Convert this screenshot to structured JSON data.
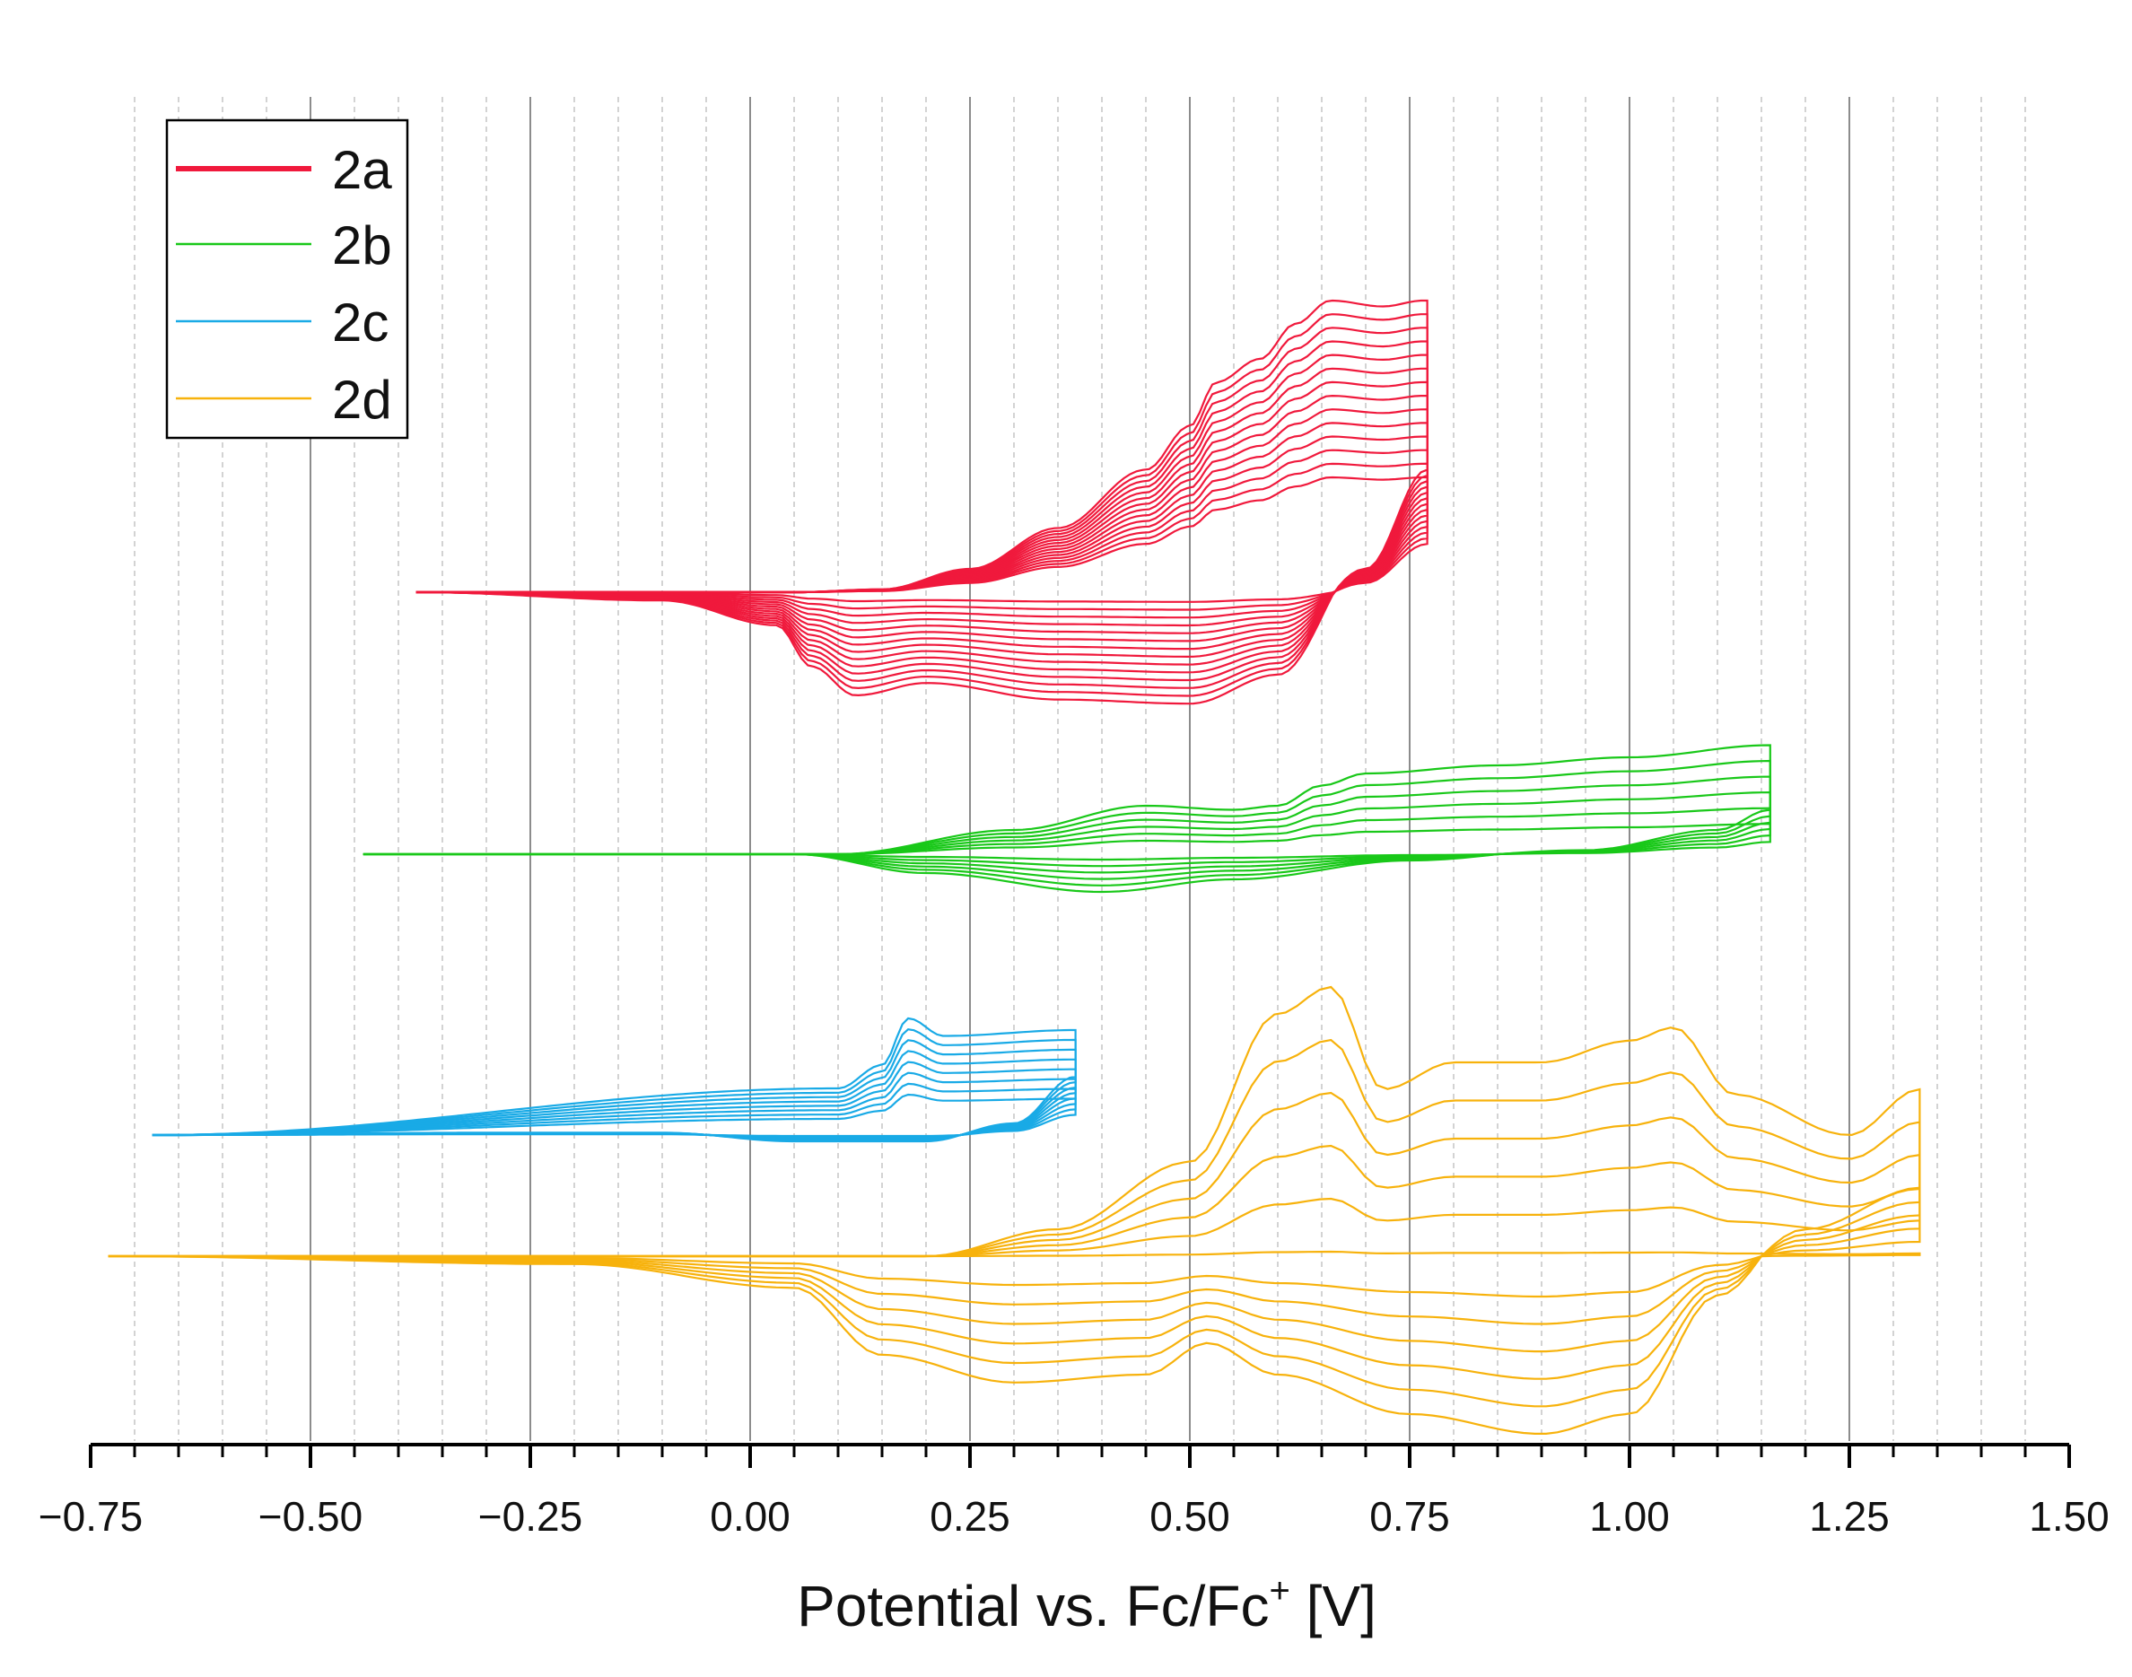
{
  "chart_data": {
    "type": "line",
    "title": "",
    "xlabel": "Potential vs. Fc/Fc",
    "xlabel_sup": "+",
    "xlabel_unit": " [V]",
    "ylabel": "",
    "xlim": [
      -0.75,
      1.5
    ],
    "xticks": [
      "−0.75",
      "−0.50",
      "−0.25",
      "0.00",
      "0.25",
      "0.50",
      "0.75",
      "1.00",
      "1.25",
      "1.50"
    ],
    "major_gridlines": [
      -0.5,
      -0.25,
      0.0,
      0.25,
      0.5,
      0.75,
      1.0,
      1.25
    ],
    "minor_gridlines": [
      -0.7,
      -0.65,
      -0.6,
      -0.55,
      -0.45,
      -0.4,
      -0.35,
      -0.3,
      -0.2,
      -0.15,
      -0.1,
      -0.05,
      0.05,
      0.1,
      0.15,
      0.2,
      0.3,
      0.35,
      0.4,
      0.45,
      0.55,
      0.6,
      0.65,
      0.7,
      0.8,
      0.85,
      0.9,
      0.95,
      1.05,
      1.1,
      1.15,
      1.2,
      1.3,
      1.35,
      1.4,
      1.45
    ],
    "legend_position": "top-left",
    "series": [
      {
        "name": "2a",
        "color": "#f0193c",
        "cycles": 14,
        "x_start": -0.38,
        "x_end": 0.77,
        "baseline": 0,
        "forward": [
          [
            -0.38,
            0
          ],
          [
            0.05,
            0
          ],
          [
            0.15,
            0.01
          ],
          [
            0.25,
            0.08
          ],
          [
            0.35,
            0.22
          ],
          [
            0.45,
            0.42
          ],
          [
            0.5,
            0.57
          ],
          [
            0.53,
            0.72
          ],
          [
            0.58,
            0.8
          ],
          [
            0.62,
            0.92
          ],
          [
            0.66,
            1.0
          ],
          [
            0.72,
            0.98
          ],
          [
            0.765,
            1.0
          ]
        ],
        "reverse": [
          [
            0.77,
            0.42
          ],
          [
            0.7,
            0.08
          ],
          [
            0.6,
            -0.2
          ],
          [
            0.5,
            -0.27
          ],
          [
            0.35,
            -0.26
          ],
          [
            0.2,
            -0.22
          ],
          [
            0.12,
            -0.25
          ],
          [
            0.07,
            -0.18
          ],
          [
            0.03,
            -0.08
          ],
          [
            -0.1,
            -0.02
          ],
          [
            -0.38,
            0
          ]
        ],
        "up_scale": [
          128,
          325
        ],
        "down_scale": [
          10,
          115
        ]
      },
      {
        "name": "2b",
        "color": "#19c819",
        "cycles": 6,
        "x_start": -0.44,
        "x_end": 1.16,
        "baseline": 0,
        "forward": [
          [
            -0.44,
            0
          ],
          [
            0.1,
            0
          ],
          [
            0.3,
            0.3
          ],
          [
            0.45,
            0.6
          ],
          [
            0.55,
            0.55
          ],
          [
            0.6,
            0.6
          ],
          [
            0.65,
            0.85
          ],
          [
            0.7,
            1.0
          ],
          [
            0.85,
            1.1
          ],
          [
            1.0,
            1.2
          ],
          [
            1.16,
            1.35
          ]
        ],
        "reverse": [
          [
            1.16,
            0.55
          ],
          [
            1.1,
            0.3
          ],
          [
            0.95,
            0.05
          ],
          [
            0.75,
            -0.05
          ],
          [
            0.55,
            -0.2
          ],
          [
            0.4,
            -0.3
          ],
          [
            0.2,
            -0.15
          ],
          [
            0.05,
            0.0
          ],
          [
            -0.44,
            0
          ]
        ],
        "up_scale": [
          25,
          90
        ],
        "down_scale": [
          5,
          35
        ]
      },
      {
        "name": "2c",
        "color": "#19aae6",
        "cycles": 8,
        "x_start": -0.68,
        "x_end": 0.37,
        "baseline": 0,
        "forward": [
          [
            -0.68,
            0
          ],
          [
            0.1,
            0.4
          ],
          [
            0.15,
            0.6
          ],
          [
            0.18,
            1.0
          ],
          [
            0.22,
            0.85
          ],
          [
            0.37,
            0.9
          ]
        ],
        "reverse": [
          [
            0.37,
            0.5
          ],
          [
            0.3,
            0.1
          ],
          [
            0.2,
            -0.05
          ],
          [
            0.05,
            -0.05
          ],
          [
            -0.1,
            0.02
          ],
          [
            -0.3,
            0.02
          ],
          [
            -0.68,
            0
          ]
        ],
        "up_scale": [
          45,
          130
        ],
        "down_scale": [
          5,
          35
        ]
      },
      {
        "name": "2d",
        "color": "#f7b20c",
        "cycles": 6,
        "x_start": -0.73,
        "x_end": 1.33,
        "baseline": 0,
        "forward": [
          [
            -0.73,
            0
          ],
          [
            0.2,
            0
          ],
          [
            0.35,
            0.1
          ],
          [
            0.5,
            0.35
          ],
          [
            0.6,
            0.9
          ],
          [
            0.66,
            1.0
          ],
          [
            0.72,
            0.62
          ],
          [
            0.8,
            0.72
          ],
          [
            0.9,
            0.72
          ],
          [
            1.0,
            0.8
          ],
          [
            1.05,
            0.85
          ],
          [
            1.12,
            0.6
          ],
          [
            1.25,
            0.45
          ],
          [
            1.33,
            0.62
          ]
        ],
        "reverse": [
          [
            1.33,
            0.25
          ],
          [
            1.2,
            0.1
          ],
          [
            1.1,
            -0.1
          ],
          [
            1.0,
            -0.4
          ],
          [
            0.9,
            -0.45
          ],
          [
            0.75,
            -0.4
          ],
          [
            0.6,
            -0.3
          ],
          [
            0.52,
            -0.22
          ],
          [
            0.45,
            -0.3
          ],
          [
            0.3,
            -0.32
          ],
          [
            0.15,
            -0.25
          ],
          [
            0.05,
            -0.08
          ],
          [
            -0.2,
            -0.02
          ],
          [
            -0.73,
            0
          ]
        ],
        "up_scale": [
          5,
          300
        ],
        "down_scale": [
          25,
          110
        ]
      }
    ]
  },
  "legend": {
    "items": [
      {
        "label": "2a",
        "color": "#f0193c"
      },
      {
        "label": "2b",
        "color": "#19c819"
      },
      {
        "label": "2c",
        "color": "#19aae6"
      },
      {
        "label": "2d",
        "color": "#f7b20c"
      }
    ]
  }
}
